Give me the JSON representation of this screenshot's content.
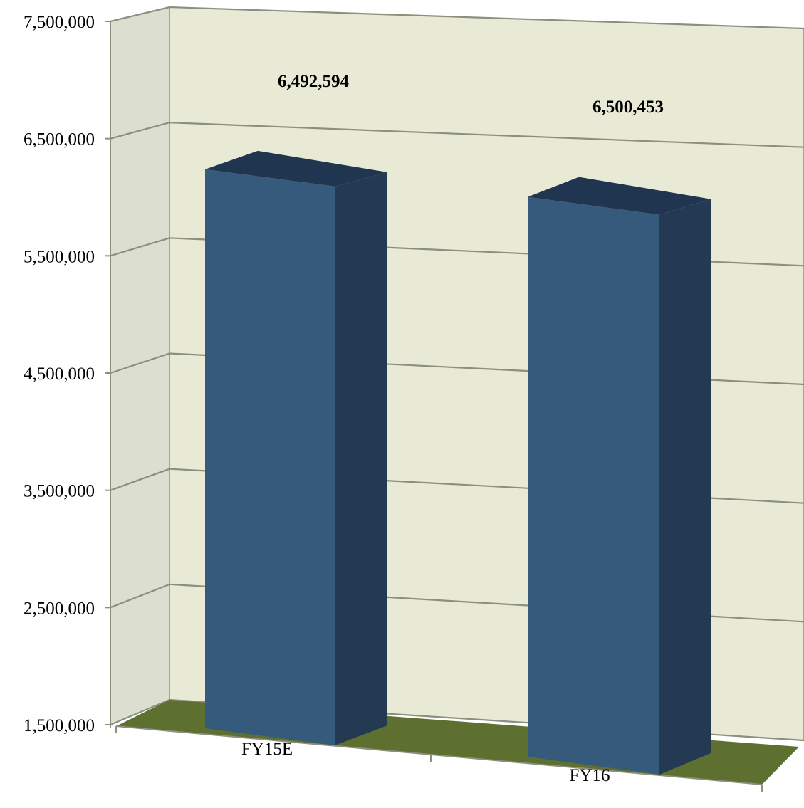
{
  "chart_data": {
    "type": "bar",
    "categories": [
      "FY15E",
      "FY16"
    ],
    "values": [
      6492594,
      6500453
    ],
    "data_labels": [
      "6,492,594",
      "6,500,453"
    ],
    "ylim": [
      1500000,
      7500000
    ],
    "yticks": [
      {
        "value": 1500000,
        "label": "1,500,000"
      },
      {
        "value": 2500000,
        "label": "2,500,000"
      },
      {
        "value": 3500000,
        "label": "3,500,000"
      },
      {
        "value": 4500000,
        "label": "4,500,000"
      },
      {
        "value": 5500000,
        "label": "5,500,000"
      },
      {
        "value": 6500000,
        "label": "6,500,000"
      },
      {
        "value": 7500000,
        "label": "7,500,000"
      }
    ],
    "grid": true,
    "style": "3d-column",
    "colors": {
      "bar_front": "#355a7c",
      "bar_side": "#233a52",
      "bar_top": "#203650",
      "floor": "#5e702f",
      "back_wall": "#e8ead6",
      "side_wall": "#dcdfcf",
      "gridline": "#8b8f7e"
    }
  }
}
